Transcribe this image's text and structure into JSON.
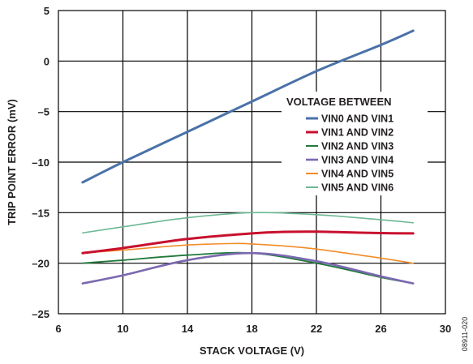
{
  "figure_id": "08911-020",
  "chart_data": {
    "type": "line",
    "title": "",
    "xlabel": "STACK VOLTAGE (V)",
    "ylabel": "TRIP POINT ERROR (mV)",
    "xlim": [
      6,
      30
    ],
    "ylim": [
      -25,
      5
    ],
    "x_ticks": [
      6,
      10,
      14,
      18,
      22,
      26,
      30
    ],
    "y_ticks": [
      5,
      0,
      -5,
      -10,
      -15,
      -20,
      -25
    ],
    "y_tick_labels": [
      "5",
      "0",
      "–5",
      "–10",
      "–15",
      "–20",
      "–25"
    ],
    "grid": true,
    "legend": {
      "title": "VOLTAGE BETWEEN",
      "placement": "right, upper-middle"
    },
    "series": [
      {
        "name": "VIN0 AND VIN1",
        "color": "#4a72a8",
        "width": 3,
        "x": [
          7.5,
          10,
          14,
          18,
          22,
          26,
          28
        ],
        "y": [
          -12,
          -10,
          -7,
          -4,
          -1,
          1.6,
          3
        ]
      },
      {
        "name": "VIN1 AND VIN2",
        "color": "#c8102e",
        "width": 3,
        "x": [
          7.5,
          10,
          14,
          18,
          20,
          22,
          24,
          26,
          28
        ],
        "y": [
          -19,
          -18.5,
          -17.6,
          -17.05,
          -16.9,
          -16.88,
          -16.95,
          -17.02,
          -17.05
        ]
      },
      {
        "name": "VIN2 AND VIN3",
        "color": "#1f7a3a",
        "width": 1.8,
        "x": [
          7.5,
          10,
          14,
          18,
          22,
          26,
          28
        ],
        "y": [
          -20,
          -19.7,
          -19.2,
          -19,
          -20,
          -21.4,
          -22
        ]
      },
      {
        "name": "VIN3 AND VIN4",
        "color": "#7b68b0",
        "width": 2.6,
        "x": [
          7.5,
          10,
          14,
          18,
          22,
          26,
          28
        ],
        "y": [
          -22,
          -21.2,
          -19.7,
          -19,
          -19.8,
          -21.3,
          -22
        ]
      },
      {
        "name": "VIN4 AND VIN5",
        "color": "#f28c28",
        "width": 1.6,
        "x": [
          7.5,
          10,
          14,
          17,
          18,
          20,
          22,
          26,
          28
        ],
        "y": [
          -19,
          -18.7,
          -18.2,
          -18.05,
          -18.1,
          -18.3,
          -18.6,
          -19.5,
          -20
        ]
      },
      {
        "name": "VIN5 AND VIN6",
        "color": "#6cb894",
        "width": 1.6,
        "x": [
          7.5,
          10,
          14,
          18,
          22,
          26,
          28
        ],
        "y": [
          -17,
          -16.4,
          -15.5,
          -15,
          -15.2,
          -15.7,
          -16
        ]
      }
    ]
  }
}
